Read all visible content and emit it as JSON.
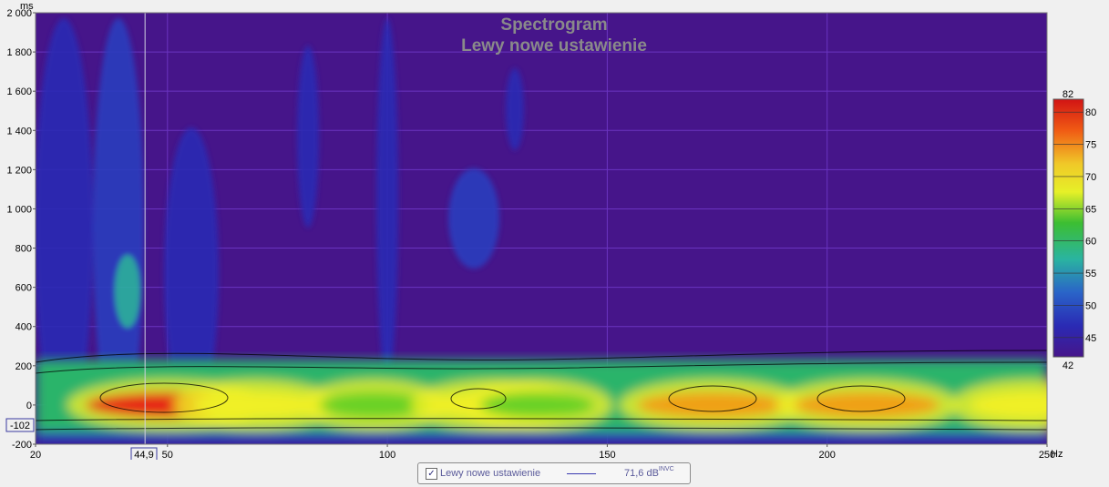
{
  "chart_data": {
    "type": "heatmap",
    "title": "Spectrogram",
    "subtitle": "Lewy nowe ustawienie",
    "x_unit": "Hz",
    "y_unit": "ms",
    "xlim": [
      20,
      250
    ],
    "ylim": [
      -200,
      2000
    ],
    "x_ticks": [
      {
        "value": 20,
        "label": "20"
      },
      {
        "value": 50,
        "label": "50"
      },
      {
        "value": 100,
        "label": "100"
      },
      {
        "value": 150,
        "label": "150"
      },
      {
        "value": 200,
        "label": "200"
      },
      {
        "value": 250,
        "label": "250"
      }
    ],
    "y_ticks": [
      {
        "value": 2000,
        "label": "2 000"
      },
      {
        "value": 1800,
        "label": "1 800"
      },
      {
        "value": 1600,
        "label": "1 600"
      },
      {
        "value": 1400,
        "label": "1 400"
      },
      {
        "value": 1200,
        "label": "1 200"
      },
      {
        "value": 1000,
        "label": "1 000"
      },
      {
        "value": 800,
        "label": "800"
      },
      {
        "value": 600,
        "label": "600"
      },
      {
        "value": 400,
        "label": "400"
      },
      {
        "value": 200,
        "label": "200"
      },
      {
        "value": 0,
        "label": "0"
      },
      {
        "value": -200,
        "label": "-200"
      }
    ],
    "cursor": {
      "x": 44.9,
      "x_label": "44,9",
      "y": -102,
      "y_label": "-102"
    },
    "colorbar": {
      "min": 42,
      "max": 82,
      "min_label": "42",
      "max_label": "82",
      "ticks": [
        {
          "value": 80,
          "label": "80"
        },
        {
          "value": 75,
          "label": "75"
        },
        {
          "value": 70,
          "label": "70"
        },
        {
          "value": 65,
          "label": "65"
        },
        {
          "value": 60,
          "label": "60"
        },
        {
          "value": 55,
          "label": "55"
        },
        {
          "value": 50,
          "label": "50"
        },
        {
          "value": 45,
          "label": "45"
        }
      ]
    },
    "ridge_peaks_db": [
      {
        "x": 50,
        "db": 82
      },
      {
        "x": 70,
        "db": 74
      },
      {
        "x": 97,
        "db": 70
      },
      {
        "x": 124,
        "db": 74
      },
      {
        "x": 134,
        "db": 71
      },
      {
        "x": 174,
        "db": 79
      },
      {
        "x": 209,
        "db": 78
      },
      {
        "x": 246,
        "db": 72
      }
    ],
    "grid": true,
    "legend_placement": "bottom-center",
    "colors": {
      "background": "#46158a",
      "grid": "#6a34c0",
      "colormap": [
        "#46158a",
        "#2a2ab4",
        "#2a5cc8",
        "#2ab4c8",
        "#2ab46a",
        "#6ad228",
        "#f0f028",
        "#f0a014",
        "#e62814"
      ]
    }
  },
  "legend": {
    "checked": "✓",
    "name": "Lewy nowe ustawienie",
    "value": "71,6 dB",
    "value_suffix": "INVC"
  }
}
